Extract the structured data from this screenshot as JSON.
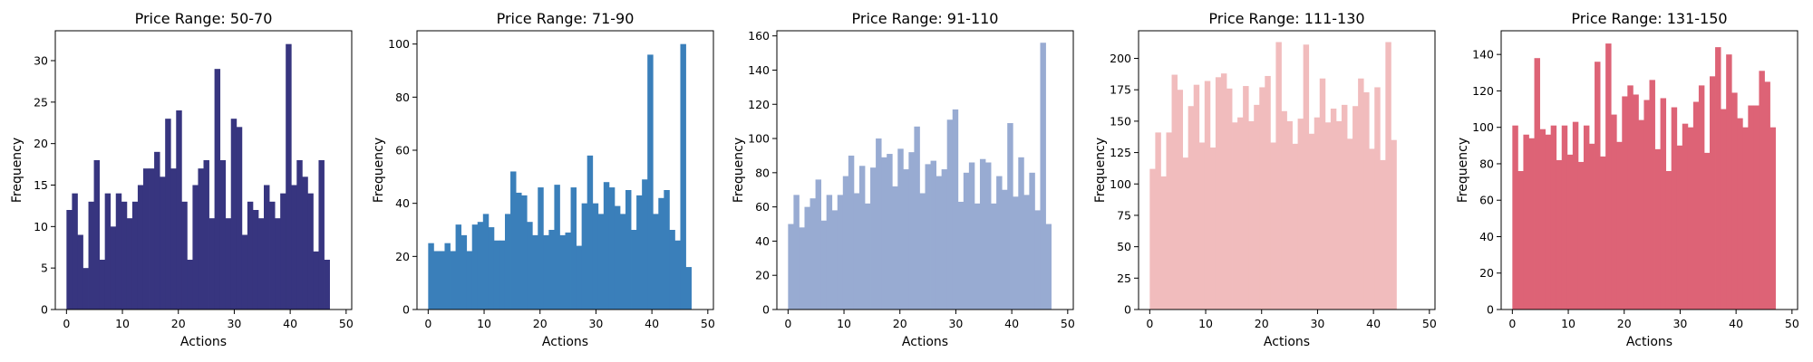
{
  "chart_data": [
    {
      "type": "bar",
      "title": "Price Range: 50-70",
      "xlabel": "Actions",
      "ylabel": "Frequency",
      "color": "#37357f",
      "xlim": [
        -2,
        51
      ],
      "ylim": [
        0,
        33.6
      ],
      "xticks": [
        0,
        10,
        20,
        30,
        40,
        50
      ],
      "yticks": [
        0,
        5,
        10,
        15,
        20,
        25,
        30
      ],
      "bin_start": 0,
      "bin_width": 0.98,
      "values": [
        12,
        14,
        9,
        5,
        13,
        18,
        6,
        14,
        10,
        14,
        13,
        11,
        13,
        15,
        17,
        17,
        19,
        16,
        23,
        17,
        24,
        13,
        6,
        15,
        17,
        18,
        11,
        29,
        18,
        11,
        23,
        22,
        9,
        13,
        12,
        11,
        15,
        13,
        11,
        14,
        32,
        15,
        18,
        16,
        14,
        7,
        18,
        6
      ]
    },
    {
      "type": "bar",
      "title": "Price Range: 71-90",
      "xlabel": "Actions",
      "ylabel": "Frequency",
      "color": "#3a7fba",
      "xlim": [
        -2,
        51
      ],
      "ylim": [
        0,
        105
      ],
      "xticks": [
        0,
        10,
        20,
        30,
        40,
        50
      ],
      "yticks": [
        0,
        20,
        40,
        60,
        80,
        100
      ],
      "bin_start": 0,
      "bin_width": 0.98,
      "values": [
        25,
        22,
        22,
        25,
        22,
        32,
        28,
        22,
        32,
        33,
        36,
        31,
        26,
        26,
        36,
        52,
        44,
        43,
        33,
        28,
        46,
        28,
        30,
        47,
        28,
        29,
        46,
        24,
        40,
        58,
        40,
        36,
        48,
        46,
        39,
        36,
        45,
        30,
        43,
        49,
        96,
        36,
        42,
        45,
        30,
        26,
        100,
        16
      ]
    },
    {
      "type": "bar",
      "title": "Price Range: 91-110",
      "xlabel": "Actions",
      "ylabel": "Frequency",
      "color": "#98abd2",
      "xlim": [
        -2,
        51
      ],
      "ylim": [
        0,
        163
      ],
      "xticks": [
        0,
        10,
        20,
        30,
        40,
        50
      ],
      "yticks": [
        0,
        20,
        40,
        60,
        80,
        100,
        120,
        140,
        160
      ],
      "bin_start": 0,
      "bin_width": 0.98,
      "values": [
        50,
        67,
        48,
        60,
        65,
        76,
        52,
        67,
        58,
        67,
        78,
        90,
        68,
        84,
        62,
        83,
        100,
        89,
        91,
        72,
        94,
        82,
        92,
        107,
        68,
        85,
        87,
        78,
        82,
        111,
        117,
        63,
        80,
        86,
        62,
        88,
        86,
        62,
        78,
        70,
        109,
        66,
        89,
        67,
        80,
        58,
        156,
        50
      ]
    },
    {
      "type": "bar",
      "title": "Price Range: 111-130",
      "xlabel": "Actions",
      "ylabel": "Frequency",
      "color": "#f1bcbd",
      "xlim": [
        -2,
        51
      ],
      "ylim": [
        0,
        222
      ],
      "xticks": [
        0,
        10,
        20,
        30,
        40,
        50
      ],
      "yticks": [
        0,
        25,
        50,
        75,
        100,
        125,
        150,
        175,
        200
      ],
      "bin_start": 0,
      "bin_width": 0.98,
      "values": [
        112,
        141,
        106,
        141,
        187,
        175,
        121,
        162,
        179,
        133,
        182,
        129,
        185,
        188,
        176,
        149,
        153,
        178,
        150,
        163,
        177,
        186,
        133,
        213,
        158,
        150,
        132,
        152,
        211,
        140,
        153,
        184,
        149,
        160,
        150,
        163,
        136,
        162,
        184,
        173,
        128,
        177,
        119,
        213,
        135
      ]
    },
    {
      "type": "bar",
      "title": "Price Range: 131-150",
      "xlabel": "Actions",
      "ylabel": "Frequency",
      "color": "#dd6376",
      "xlim": [
        -2,
        51
      ],
      "ylim": [
        0,
        153
      ],
      "xticks": [
        0,
        10,
        20,
        30,
        40,
        50
      ],
      "yticks": [
        0,
        20,
        40,
        60,
        80,
        100,
        120,
        140
      ],
      "bin_start": 0,
      "bin_width": 0.98,
      "values": [
        101,
        76,
        96,
        94,
        138,
        99,
        96,
        101,
        82,
        101,
        85,
        103,
        81,
        101,
        91,
        136,
        84,
        146,
        107,
        92,
        117,
        123,
        118,
        104,
        115,
        126,
        88,
        116,
        76,
        111,
        90,
        102,
        100,
        114,
        123,
        86,
        128,
        144,
        110,
        140,
        119,
        105,
        100,
        112,
        112,
        131,
        125,
        100
      ]
    }
  ]
}
